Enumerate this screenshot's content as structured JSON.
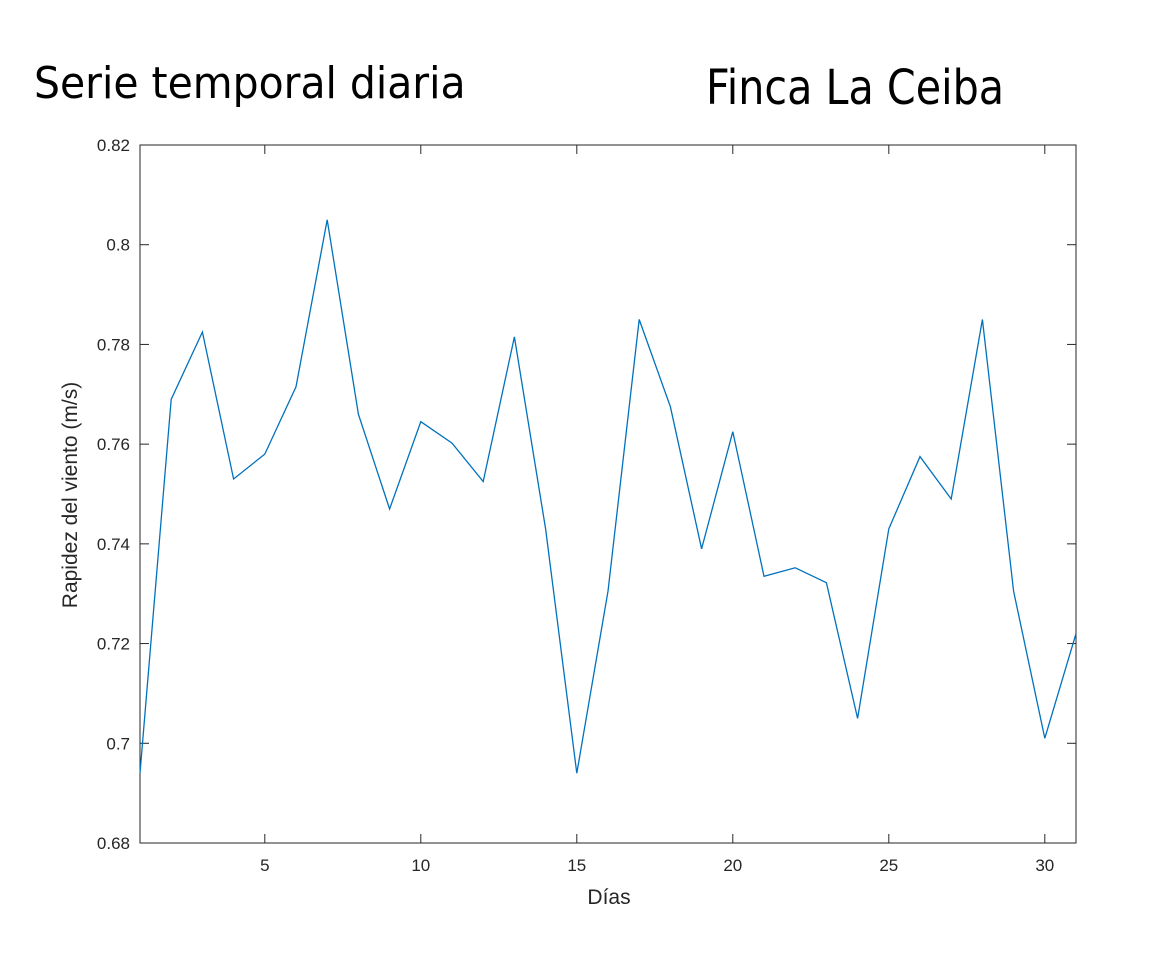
{
  "titles": {
    "left": "Serie temporal diaria",
    "right": "Finca La Ceiba"
  },
  "chart_data": {
    "type": "line",
    "xlabel": "Días",
    "ylabel": "Rapidez del viento (m/s)",
    "xlim": [
      1,
      31
    ],
    "ylim": [
      0.68,
      0.82
    ],
    "xticks": [
      5,
      10,
      15,
      20,
      25,
      30
    ],
    "yticks": [
      0.68,
      0.7,
      0.72,
      0.74,
      0.76,
      0.78,
      0.8,
      0.82
    ],
    "ytick_labels": [
      "0.68",
      "0.7",
      "0.72",
      "0.74",
      "0.76",
      "0.78",
      "0.8",
      "0.82"
    ],
    "grid": false,
    "series": [
      {
        "color": "#0072bd",
        "x": [
          1,
          2,
          3,
          4,
          5,
          6,
          7,
          8,
          9,
          10,
          11,
          12,
          13,
          14,
          15,
          16,
          17,
          18,
          19,
          20,
          21,
          22,
          23,
          24,
          25,
          26,
          27,
          28,
          29,
          30,
          31
        ],
        "y": [
          0.694,
          0.769,
          0.7825,
          0.753,
          0.758,
          0.7715,
          0.805,
          0.766,
          0.747,
          0.7645,
          0.7602,
          0.7525,
          0.7815,
          0.743,
          0.694,
          0.7305,
          0.785,
          0.7675,
          0.739,
          0.7625,
          0.7335,
          0.7352,
          0.7322,
          0.705,
          0.743,
          0.7575,
          0.749,
          0.785,
          0.7305,
          0.701,
          0.722
        ]
      }
    ]
  }
}
